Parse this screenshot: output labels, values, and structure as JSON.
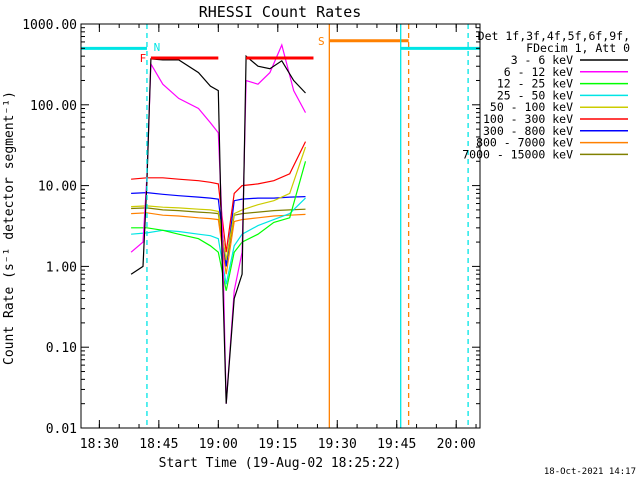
{
  "chart_data": {
    "type": "line",
    "title": "RHESSI Count Rates",
    "xlabel": "Start Time (19-Aug-02 18:25:22)",
    "ylabel": "Count Rate (s⁻¹ detector segment⁻¹)",
    "yscale": "log",
    "ylim": [
      0.01,
      1000
    ],
    "xlim": [
      "18:25:22",
      "20:06"
    ],
    "y_tick_labels": [
      "1000.00",
      "100.00",
      "10.00",
      "1.00",
      "0.10",
      "0.01"
    ],
    "x_tick_labels": [
      "18:30",
      "18:45",
      "19:00",
      "19:15",
      "19:30",
      "19:45",
      "20:00"
    ],
    "legend_header": [
      "Det 1f,3f,4f,5f,6f,9f,",
      "FDecim 1, Att 0"
    ],
    "legend_position": "top-right",
    "footer": "18-Oct-2021 14:17",
    "series": [
      {
        "name": "3 - 6 keV",
        "color": "#000000",
        "x": [
          "18:38",
          "18:41",
          "18:42",
          "18:43",
          "18:46",
          "18:50",
          "18:55",
          "18:58",
          "19:00",
          "19:01",
          "19:02",
          "19:04",
          "19:06",
          "19:07",
          "19:10",
          "19:13",
          "19:16",
          "19:19",
          "19:22"
        ],
        "y": [
          0.8,
          1.0,
          11,
          370,
          360,
          360,
          250,
          170,
          150,
          1.0,
          0.02,
          0.4,
          0.8,
          400,
          300,
          280,
          350,
          200,
          140
        ]
      },
      {
        "name": "6 - 12 keV",
        "color": "#ff00ff",
        "x": [
          "18:38",
          "18:41",
          "18:42",
          "18:43",
          "18:46",
          "18:50",
          "18:55",
          "18:58",
          "19:00",
          "19:01",
          "19:02",
          "19:04",
          "19:06",
          "19:07",
          "19:10",
          "19:13",
          "19:16",
          "19:19",
          "19:22"
        ],
        "y": [
          1.5,
          2.0,
          13,
          320,
          180,
          120,
          90,
          60,
          45,
          3.0,
          0.02,
          0.5,
          1.5,
          200,
          180,
          250,
          550,
          150,
          80
        ]
      },
      {
        "name": "12 - 25 keV",
        "color": "#00ff00",
        "x": [
          "18:38",
          "18:42",
          "18:46",
          "18:50",
          "18:55",
          "18:58",
          "19:00",
          "19:02",
          "19:04",
          "19:06",
          "19:10",
          "19:14",
          "19:18",
          "19:22"
        ],
        "y": [
          3.0,
          3.0,
          2.8,
          2.5,
          2.2,
          1.8,
          1.5,
          0.5,
          1.5,
          2.0,
          2.5,
          3.5,
          4.0,
          20
        ]
      },
      {
        "name": "25 - 50 keV",
        "color": "#00e5e5",
        "x": [
          "18:38",
          "18:42",
          "18:46",
          "18:50",
          "18:55",
          "18:58",
          "19:00",
          "19:02",
          "19:04",
          "19:06",
          "19:10",
          "19:14",
          "19:18",
          "19:22"
        ],
        "y": [
          2.5,
          2.6,
          2.8,
          2.7,
          2.5,
          2.4,
          2.2,
          0.6,
          1.8,
          2.5,
          3.2,
          3.8,
          4.5,
          7
        ]
      },
      {
        "name": "50 - 100 keV",
        "color": "#cccc00",
        "x": [
          "18:38",
          "18:42",
          "18:46",
          "18:50",
          "18:55",
          "18:58",
          "19:00",
          "19:02",
          "19:04",
          "19:06",
          "19:10",
          "19:14",
          "19:18",
          "19:22"
        ],
        "y": [
          5.5,
          5.6,
          5.4,
          5.3,
          5.1,
          5.0,
          4.8,
          1.2,
          4.5,
          5.0,
          5.8,
          6.5,
          8,
          30
        ]
      },
      {
        "name": "100 - 300 keV",
        "color": "#ff0000",
        "x": [
          "18:38",
          "18:42",
          "18:46",
          "18:50",
          "18:55",
          "18:58",
          "19:00",
          "19:02",
          "19:04",
          "19:06",
          "19:10",
          "19:14",
          "19:18",
          "19:22"
        ],
        "y": [
          12,
          12.5,
          12.5,
          12,
          11.5,
          11,
          10.5,
          1.5,
          8,
          10,
          10.5,
          11.5,
          14,
          35
        ]
      },
      {
        "name": "300 - 800 keV",
        "color": "#0000ff",
        "x": [
          "18:38",
          "18:42",
          "18:46",
          "18:50",
          "18:55",
          "18:58",
          "19:00",
          "19:02",
          "19:04",
          "19:06",
          "19:10",
          "19:14",
          "19:18",
          "19:22"
        ],
        "y": [
          8,
          8.2,
          7.8,
          7.5,
          7.2,
          7.0,
          6.8,
          1.0,
          6.5,
          6.8,
          7.0,
          7.0,
          7.2,
          7.3
        ]
      },
      {
        "name": "800 - 7000 keV",
        "color": "#ff8000",
        "x": [
          "18:38",
          "18:42",
          "18:46",
          "18:50",
          "18:55",
          "18:58",
          "19:00",
          "19:02",
          "19:04",
          "19:06",
          "19:10",
          "19:14",
          "19:18",
          "19:22"
        ],
        "y": [
          4.5,
          4.6,
          4.3,
          4.2,
          4.0,
          3.9,
          3.8,
          0.8,
          3.6,
          3.8,
          4.0,
          4.2,
          4.3,
          4.4
        ]
      },
      {
        "name": "7000 - 15000 keV",
        "color": "#808000",
        "x": [
          "18:38",
          "18:42",
          "18:46",
          "18:50",
          "18:55",
          "18:58",
          "19:00",
          "19:02",
          "19:04",
          "19:06",
          "19:10",
          "19:14",
          "19:18",
          "19:22"
        ],
        "y": [
          5.2,
          5.3,
          5.0,
          4.9,
          4.7,
          4.6,
          4.5,
          1.0,
          4.3,
          4.5,
          4.7,
          4.9,
          5.0,
          5.1
        ]
      }
    ],
    "annotations": [
      {
        "label": "",
        "type": "bar",
        "color": "#00e5e5",
        "x": [
          "18:25:22",
          "18:42"
        ],
        "y": 500
      },
      {
        "label": "N",
        "type": "vline-dashed",
        "color": "#00e5e5",
        "x": "18:42"
      },
      {
        "label": "F",
        "type": "bar",
        "color": "#ff0000",
        "x": [
          "18:43",
          "19:00"
        ],
        "y": 380
      },
      {
        "label": "",
        "type": "bar",
        "color": "#ff0000",
        "x": [
          "19:07",
          "19:24"
        ],
        "y": 380
      },
      {
        "label": "S",
        "type": "bar",
        "color": "#ff8000",
        "x": [
          "19:28",
          "19:48"
        ],
        "y": 620
      },
      {
        "label": "",
        "type": "vline",
        "color": "#ff8000",
        "x": "19:28"
      },
      {
        "label": "",
        "type": "vline",
        "color": "#00e5e5",
        "x": "19:46"
      },
      {
        "label": "",
        "type": "vline-dashed",
        "color": "#ff8000",
        "x": "19:48"
      },
      {
        "label": "",
        "type": "bar",
        "color": "#00e5e5",
        "x": [
          "19:46",
          "20:06"
        ],
        "y": 500
      },
      {
        "label": "",
        "type": "vline-dashed",
        "color": "#00e5e5",
        "x": "20:03"
      }
    ]
  }
}
